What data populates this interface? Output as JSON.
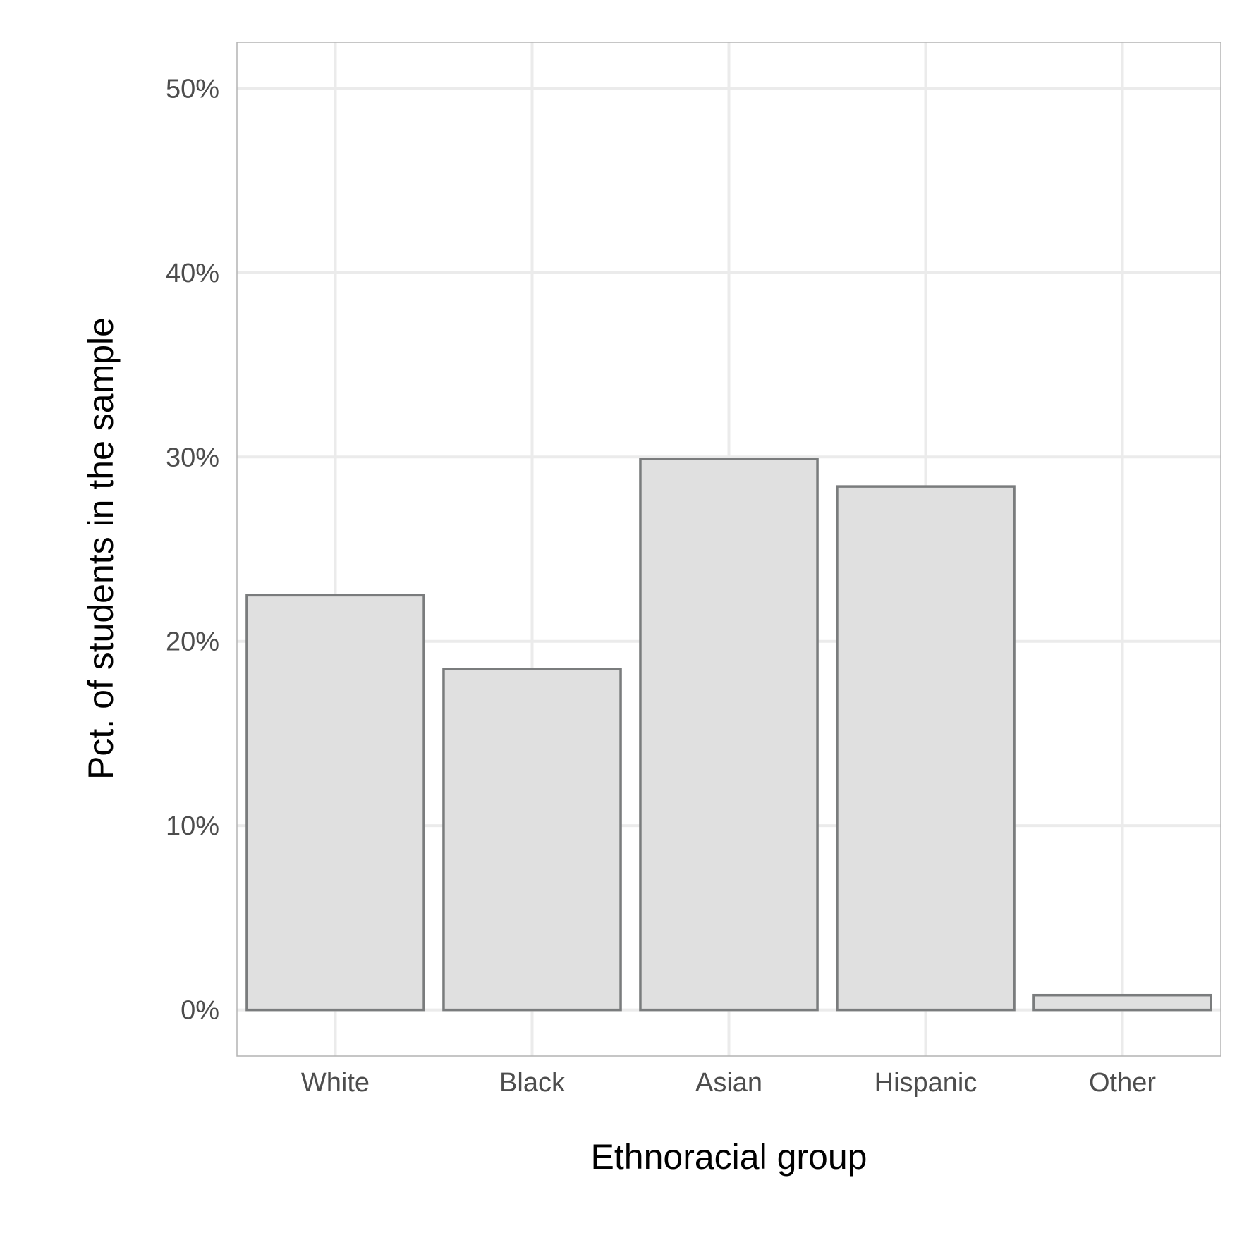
{
  "chart_data": {
    "type": "bar",
    "title": "",
    "xlabel": "Ethnoracial group",
    "ylabel": "Pct. of students in the sample",
    "categories": [
      "White",
      "Black",
      "Asian",
      "Hispanic",
      "Other"
    ],
    "values": [
      22.5,
      18.5,
      29.9,
      28.4,
      0.8
    ],
    "ylim": [
      -2.5,
      52.5
    ],
    "yticks": [
      0,
      10,
      20,
      30,
      40,
      50
    ],
    "ytick_labels": [
      "0%",
      "10%",
      "20%",
      "30%",
      "40%",
      "50%"
    ],
    "grid": true,
    "legend": "none",
    "colors": {
      "bar_fill": "#e0e0e0",
      "bar_stroke": "#7a7c7d",
      "grid": "#ebebeb",
      "panel_border": "#b3b3b3",
      "tick_text": "#4d4d4d",
      "title_text": "#000000"
    }
  }
}
